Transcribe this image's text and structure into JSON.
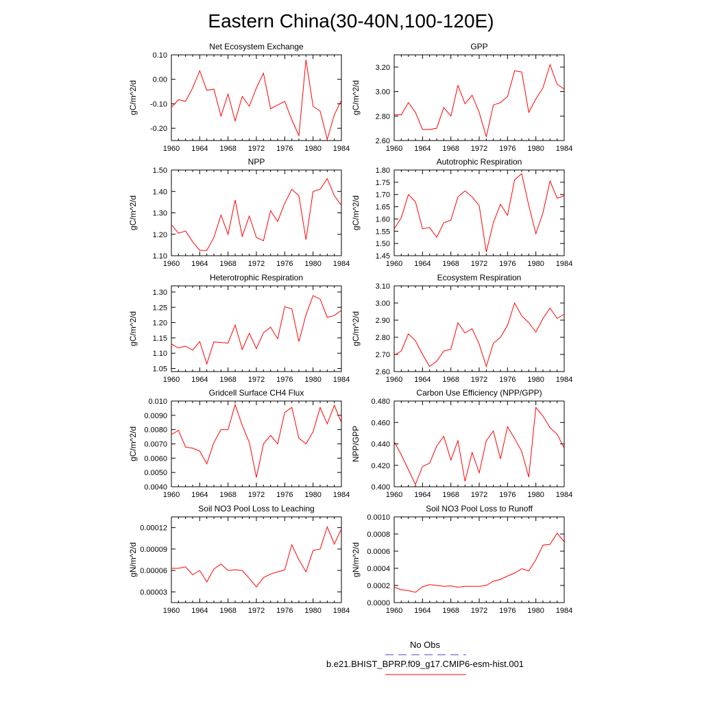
{
  "figure": {
    "title": "Eastern China(30-40N,100-120E)",
    "legend": [
      {
        "label": "No Obs",
        "color": "#4444cc",
        "style": "dashed"
      },
      {
        "label": "b.e21.BHIST_BPRP.f09_g17.CMIP6-esm-hist.001",
        "color": "#ff0000",
        "style": "solid"
      }
    ]
  },
  "chart_data": [
    {
      "type": "line",
      "title": "Net Ecosystem Exchange",
      "ylabel": "gC/m^2/d",
      "xlim": [
        1960,
        1984
      ],
      "ylim": [
        -0.25,
        0.1
      ],
      "xticks": [
        1960,
        1964,
        1968,
        1972,
        1976,
        1980,
        1984
      ],
      "yticks": [
        -0.2,
        -0.1,
        0.0,
        0.1
      ],
      "ytick_labels": [
        "-0.20",
        "-0.10",
        "0.00",
        "0.10"
      ],
      "x": [
        1960,
        1961,
        1962,
        1963,
        1964,
        1965,
        1966,
        1967,
        1968,
        1969,
        1970,
        1971,
        1972,
        1973,
        1974,
        1975,
        1976,
        1977,
        1978,
        1979,
        1980,
        1981,
        1982,
        1983,
        1984
      ],
      "series": [
        {
          "color": "#ff0000",
          "values": [
            -0.115,
            -0.083,
            -0.09,
            -0.035,
            0.035,
            -0.045,
            -0.04,
            -0.15,
            -0.06,
            -0.17,
            -0.07,
            -0.11,
            -0.035,
            0.025,
            -0.12,
            -0.105,
            -0.09,
            -0.165,
            -0.23,
            0.08,
            -0.11,
            -0.13,
            -0.245,
            -0.145,
            -0.085
          ]
        }
      ]
    },
    {
      "type": "line",
      "title": "GPP",
      "ylabel": "gC/m^2/d",
      "xlim": [
        1960,
        1984
      ],
      "ylim": [
        2.6,
        3.3
      ],
      "xticks": [
        1960,
        1964,
        1968,
        1972,
        1976,
        1980,
        1984
      ],
      "yticks": [
        2.6,
        2.8,
        3.0,
        3.2
      ],
      "ytick_labels": [
        "2.60",
        "2.80",
        "3.00",
        "3.20"
      ],
      "x": [
        1960,
        1961,
        1962,
        1963,
        1964,
        1965,
        1966,
        1967,
        1968,
        1969,
        1970,
        1971,
        1972,
        1973,
        1974,
        1975,
        1976,
        1977,
        1978,
        1979,
        1980,
        1981,
        1982,
        1983,
        1984
      ],
      "series": [
        {
          "color": "#ff0000",
          "values": [
            2.81,
            2.81,
            2.91,
            2.83,
            2.69,
            2.69,
            2.7,
            2.87,
            2.8,
            3.05,
            2.9,
            2.97,
            2.83,
            2.63,
            2.89,
            2.91,
            2.96,
            3.17,
            3.16,
            2.83,
            2.94,
            3.03,
            3.22,
            3.06,
            3.02
          ]
        }
      ]
    },
    {
      "type": "line",
      "title": "NPP",
      "ylabel": "gC/m^2/d",
      "xlim": [
        1960,
        1984
      ],
      "ylim": [
        1.1,
        1.5
      ],
      "xticks": [
        1960,
        1964,
        1968,
        1972,
        1976,
        1980,
        1984
      ],
      "yticks": [
        1.1,
        1.2,
        1.3,
        1.4,
        1.5
      ],
      "ytick_labels": [
        "1.10",
        "1.20",
        "1.30",
        "1.40",
        "1.50"
      ],
      "x": [
        1960,
        1961,
        1962,
        1963,
        1964,
        1965,
        1966,
        1967,
        1968,
        1969,
        1970,
        1971,
        1972,
        1973,
        1974,
        1975,
        1976,
        1977,
        1978,
        1979,
        1980,
        1981,
        1982,
        1983,
        1984
      ],
      "series": [
        {
          "color": "#ff0000",
          "values": [
            1.245,
            1.205,
            1.215,
            1.165,
            1.125,
            1.125,
            1.185,
            1.29,
            1.2,
            1.36,
            1.19,
            1.285,
            1.185,
            1.17,
            1.31,
            1.26,
            1.345,
            1.41,
            1.38,
            1.175,
            1.4,
            1.41,
            1.46,
            1.38,
            1.335
          ]
        }
      ]
    },
    {
      "type": "line",
      "title": "Autotrophic Respiration",
      "ylabel": "gC/m^2/d",
      "xlim": [
        1960,
        1984
      ],
      "ylim": [
        1.45,
        1.8
      ],
      "xticks": [
        1960,
        1964,
        1968,
        1972,
        1976,
        1980,
        1984
      ],
      "yticks": [
        1.45,
        1.5,
        1.55,
        1.6,
        1.65,
        1.7,
        1.75,
        1.8
      ],
      "ytick_labels": [
        "1.45",
        "1.50",
        "1.55",
        "1.60",
        "1.65",
        "1.70",
        "1.75",
        "1.80"
      ],
      "x": [
        1960,
        1961,
        1962,
        1963,
        1964,
        1965,
        1966,
        1967,
        1968,
        1969,
        1970,
        1971,
        1972,
        1973,
        1974,
        1975,
        1976,
        1977,
        1978,
        1979,
        1980,
        1981,
        1982,
        1983,
        1984
      ],
      "series": [
        {
          "color": "#ff0000",
          "values": [
            1.56,
            1.605,
            1.7,
            1.67,
            1.56,
            1.565,
            1.525,
            1.585,
            1.595,
            1.69,
            1.715,
            1.69,
            1.655,
            1.465,
            1.585,
            1.66,
            1.615,
            1.76,
            1.785,
            1.655,
            1.54,
            1.625,
            1.755,
            1.685,
            1.695
          ]
        }
      ]
    },
    {
      "type": "line",
      "title": "Heterotrophic Respiration",
      "ylabel": "gC/m^2/d",
      "xlim": [
        1960,
        1984
      ],
      "ylim": [
        1.04,
        1.32
      ],
      "xticks": [
        1960,
        1964,
        1968,
        1972,
        1976,
        1980,
        1984
      ],
      "yticks": [
        1.05,
        1.1,
        1.15,
        1.2,
        1.25,
        1.3
      ],
      "ytick_labels": [
        "1.05",
        "1.10",
        "1.15",
        "1.20",
        "1.25",
        "1.30"
      ],
      "x": [
        1960,
        1961,
        1962,
        1963,
        1964,
        1965,
        1966,
        1967,
        1968,
        1969,
        1970,
        1971,
        1972,
        1973,
        1974,
        1975,
        1976,
        1977,
        1978,
        1979,
        1980,
        1981,
        1982,
        1983,
        1984
      ],
      "series": [
        {
          "color": "#ff0000",
          "values": [
            1.13,
            1.117,
            1.123,
            1.11,
            1.138,
            1.065,
            1.137,
            1.135,
            1.133,
            1.192,
            1.112,
            1.165,
            1.115,
            1.167,
            1.185,
            1.147,
            1.252,
            1.245,
            1.138,
            1.225,
            1.288,
            1.277,
            1.217,
            1.223,
            1.24
          ]
        }
      ]
    },
    {
      "type": "line",
      "title": "Ecosystem Respiration",
      "ylabel": "gC/m^2/d",
      "xlim": [
        1960,
        1984
      ],
      "ylim": [
        2.6,
        3.1
      ],
      "xticks": [
        1960,
        1964,
        1968,
        1972,
        1976,
        1980,
        1984
      ],
      "yticks": [
        2.6,
        2.7,
        2.8,
        2.9,
        3.0,
        3.1
      ],
      "ytick_labels": [
        "2.60",
        "2.70",
        "2.80",
        "2.90",
        "3.00",
        "3.10"
      ],
      "x": [
        1960,
        1961,
        1962,
        1963,
        1964,
        1965,
        1966,
        1967,
        1968,
        1969,
        1970,
        1971,
        1972,
        1973,
        1974,
        1975,
        1976,
        1977,
        1978,
        1979,
        1980,
        1981,
        1982,
        1983,
        1984
      ],
      "series": [
        {
          "color": "#ff0000",
          "values": [
            2.695,
            2.72,
            2.82,
            2.78,
            2.7,
            2.63,
            2.66,
            2.72,
            2.73,
            2.885,
            2.825,
            2.85,
            2.76,
            2.63,
            2.765,
            2.8,
            2.87,
            3.0,
            2.925,
            2.885,
            2.83,
            2.91,
            2.97,
            2.91,
            2.935
          ]
        }
      ]
    },
    {
      "type": "line",
      "title": "Gridcell Surface CH4 Flux",
      "ylabel": "gC/m^2/d",
      "xlim": [
        1960,
        1984
      ],
      "ylim": [
        0.004,
        0.01
      ],
      "xticks": [
        1960,
        1964,
        1968,
        1972,
        1976,
        1980,
        1984
      ],
      "yticks": [
        0.004,
        0.005,
        0.006,
        0.007,
        0.008,
        0.009,
        0.01
      ],
      "ytick_labels": [
        "0.0040",
        "0.0050",
        "0.0060",
        "0.0070",
        "0.0080",
        "0.0090",
        "0.010"
      ],
      "x": [
        1960,
        1961,
        1962,
        1963,
        1964,
        1965,
        1966,
        1967,
        1968,
        1969,
        1970,
        1971,
        1972,
        1973,
        1974,
        1975,
        1976,
        1977,
        1978,
        1979,
        1980,
        1981,
        1982,
        1983,
        1984
      ],
      "series": [
        {
          "color": "#ff0000",
          "values": [
            0.00765,
            0.00795,
            0.00678,
            0.0067,
            0.0065,
            0.0056,
            0.0071,
            0.008,
            0.008,
            0.00975,
            0.0083,
            0.0071,
            0.00465,
            0.007,
            0.0076,
            0.007,
            0.0092,
            0.00955,
            0.0074,
            0.007,
            0.00785,
            0.00955,
            0.0084,
            0.0097,
            0.0085
          ]
        }
      ]
    },
    {
      "type": "line",
      "title": "Carbon Use Efficiency (NPP/GPP)",
      "ylabel": "NPP/GPP",
      "xlim": [
        1960,
        1984
      ],
      "ylim": [
        0.4,
        0.48
      ],
      "xticks": [
        1960,
        1964,
        1968,
        1972,
        1976,
        1980,
        1984
      ],
      "yticks": [
        0.4,
        0.42,
        0.44,
        0.46,
        0.48
      ],
      "ytick_labels": [
        "0.400",
        "0.420",
        "0.440",
        "0.460",
        "0.480"
      ],
      "x": [
        1960,
        1961,
        1962,
        1963,
        1964,
        1965,
        1966,
        1967,
        1968,
        1969,
        1970,
        1971,
        1972,
        1973,
        1974,
        1975,
        1976,
        1977,
        1978,
        1979,
        1980,
        1981,
        1982,
        1983,
        1984
      ],
      "series": [
        {
          "color": "#ff0000",
          "values": [
            0.442,
            0.43,
            0.416,
            0.402,
            0.419,
            0.422,
            0.438,
            0.447,
            0.425,
            0.443,
            0.405,
            0.432,
            0.413,
            0.443,
            0.452,
            0.426,
            0.456,
            0.445,
            0.433,
            0.409,
            0.474,
            0.466,
            0.455,
            0.449,
            0.436
          ]
        }
      ]
    },
    {
      "type": "line",
      "title": "Soil NO3 Pool Loss to Leaching",
      "ylabel": "gN/m^2/d",
      "xlim": [
        1960,
        1984
      ],
      "ylim": [
        1.5e-05,
        0.000135
      ],
      "xticks": [
        1960,
        1964,
        1968,
        1972,
        1976,
        1980,
        1984
      ],
      "yticks": [
        3e-05,
        6e-05,
        9e-05,
        0.00012
      ],
      "ytick_labels": [
        "0.00003",
        "0.00006",
        "0.00009",
        "0.00012"
      ],
      "x": [
        1960,
        1961,
        1962,
        1963,
        1964,
        1965,
        1966,
        1967,
        1968,
        1969,
        1970,
        1971,
        1972,
        1973,
        1974,
        1975,
        1976,
        1977,
        1978,
        1979,
        1980,
        1981,
        1982,
        1983,
        1984
      ],
      "series": [
        {
          "color": "#ff0000",
          "values": [
            6.3e-05,
            6.3e-05,
            6.5e-05,
            5.4e-05,
            6e-05,
            4.4e-05,
            6.2e-05,
            6.9e-05,
            6e-05,
            6.1e-05,
            6e-05,
            4.9e-05,
            3.7e-05,
            5e-05,
            5.5e-05,
            5.8e-05,
            6.1e-05,
            9.6e-05,
            7.5e-05,
            5.8e-05,
            8.8e-05,
            9e-05,
            0.000121,
            9.7e-05,
            0.000118
          ]
        }
      ]
    },
    {
      "type": "line",
      "title": "Soil NO3 Pool Loss to Runoff",
      "ylabel": "gN/m^2/d",
      "xlim": [
        1960,
        1984
      ],
      "ylim": [
        0.0,
        0.001
      ],
      "xticks": [
        1960,
        1964,
        1968,
        1972,
        1976,
        1980,
        1984
      ],
      "yticks": [
        0.0,
        0.0002,
        0.0004,
        0.0006,
        0.0008,
        0.001
      ],
      "ytick_labels": [
        "0.0000",
        "0.0002",
        "0.0004",
        "0.0006",
        "0.0008",
        "0.0010"
      ],
      "x": [
        1960,
        1961,
        1962,
        1963,
        1964,
        1965,
        1966,
        1967,
        1968,
        1969,
        1970,
        1971,
        1972,
        1973,
        1974,
        1975,
        1976,
        1977,
        1978,
        1979,
        1980,
        1981,
        1982,
        1983,
        1984
      ],
      "series": [
        {
          "color": "#ff0000",
          "values": [
            0.00018,
            0.00015,
            0.00014,
            0.00012,
            0.000185,
            0.00021,
            0.0002,
            0.00019,
            0.000195,
            0.00018,
            0.00019,
            0.00019,
            0.00019,
            0.0002,
            0.00025,
            0.00027,
            0.00031,
            0.000345,
            0.000395,
            0.00037,
            0.0005,
            0.00067,
            0.00068,
            0.00081,
            0.00071
          ]
        }
      ]
    }
  ]
}
